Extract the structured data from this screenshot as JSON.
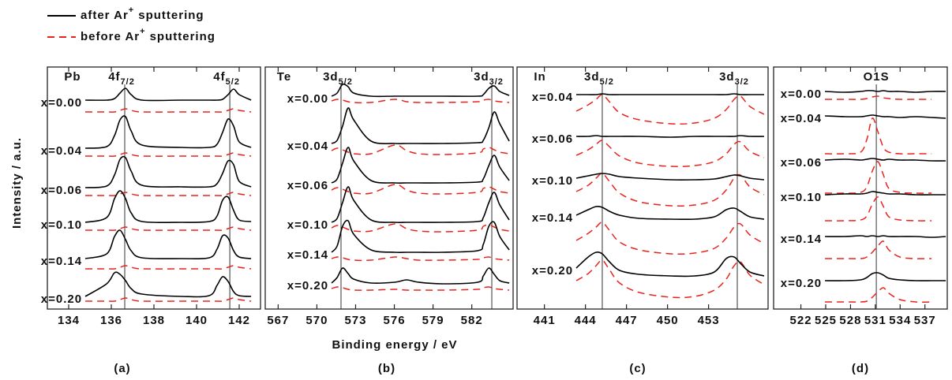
{
  "legend": {
    "after": {
      "text": "after Ar",
      "sup": "+",
      "tail": "sputtering",
      "color": "#000000",
      "line_style": "solid"
    },
    "before": {
      "text": "before Ar",
      "sup": "+",
      "tail": "sputtering",
      "color": "#e8231c",
      "line_style": "dashed"
    }
  },
  "x_label": "Binding energy / eV",
  "y_label": "Intensity / a.u.",
  "chart_data": [
    {
      "type": "line",
      "caption": "(a)",
      "element": "Pb",
      "peak_labels": [
        {
          "main": "4f",
          "sub": "7/2"
        },
        {
          "main": "4f",
          "sub": "5/2"
        }
      ],
      "ref_lines": [
        136.63,
        141.56
      ],
      "xlim": [
        133,
        143
      ],
      "xticks": [
        134,
        136,
        138,
        140,
        142
      ],
      "ylim": [
        0,
        300
      ],
      "x": [
        134.78,
        135.78,
        136.15,
        136.41,
        136.67,
        136.93,
        137.44,
        139.3,
        140.59,
        140.96,
        141.22,
        141.48,
        141.74,
        142.0,
        142.56
      ],
      "series": [
        {
          "name": "x=0.00",
          "after": [
            265,
            265,
            267,
            274,
            280,
            272,
            265,
            265,
            265,
            265,
            266,
            272,
            279,
            272,
            265
          ],
          "before": [
            250,
            250,
            250,
            252,
            254,
            252,
            250,
            250,
            250,
            250,
            250,
            252,
            254,
            252,
            250
          ]
        },
        {
          "name": "x=0.04",
          "after": [
            204,
            206,
            220,
            240,
            244,
            226,
            208,
            205,
            205,
            209,
            224,
            241,
            232,
            212,
            205
          ],
          "before": [
            194,
            194,
            194,
            196,
            198,
            196,
            194,
            194,
            194,
            194,
            194,
            196,
            198,
            196,
            194
          ]
        },
        {
          "name": "x=0.06",
          "after": [
            154,
            156,
            170,
            190,
            192,
            175,
            157,
            155,
            155,
            159,
            172,
            188,
            183,
            162,
            155
          ],
          "before": [
            144,
            144,
            144,
            146,
            148,
            146,
            144,
            144,
            144,
            144,
            144,
            146,
            148,
            146,
            144
          ]
        },
        {
          "name": "x=0.10",
          "after": [
            110,
            116,
            140,
            150,
            140,
            122,
            111,
            110,
            111,
            118,
            138,
            142,
            125,
            113,
            111
          ],
          "before": [
            100,
            100,
            100,
            102,
            104,
            102,
            100,
            100,
            100,
            100,
            100,
            102,
            104,
            102,
            100
          ]
        },
        {
          "name": "x=0.14",
          "after": [
            64,
            70,
            92,
            100,
            88,
            74,
            65,
            64,
            65,
            76,
            93,
            90,
            74,
            66,
            64
          ],
          "before": [
            51,
            51,
            51,
            53,
            55,
            53,
            51,
            51,
            51,
            51,
            51,
            53,
            55,
            53,
            51
          ]
        },
        {
          "name": "x=0.20",
          "after": [
            16,
            32,
            46,
            44,
            36,
            26,
            19,
            16,
            17,
            30,
            41,
            35,
            22,
            17,
            16
          ],
          "before": [
            10,
            10,
            10,
            12,
            14,
            12,
            10,
            10,
            10,
            10,
            10,
            12,
            14,
            12,
            10
          ]
        }
      ]
    },
    {
      "type": "line",
      "caption": "(b)",
      "element": "Te",
      "peak_labels": [
        {
          "main": "3d",
          "sub": "5/2"
        },
        {
          "main": "3d",
          "sub": "3/2"
        }
      ],
      "ref_lines": [
        571.87,
        583.55
      ],
      "xlim": [
        566,
        585.2
      ],
      "xticks": [
        567,
        570,
        573,
        576,
        579,
        582
      ],
      "ylim": [
        0,
        300
      ],
      "x": [
        571.14,
        571.57,
        571.99,
        572.42,
        572.85,
        574.2,
        576.03,
        576.95,
        577.87,
        579.71,
        582.46,
        582.89,
        583.32,
        583.74,
        584.17,
        584.9
      ],
      "series": [
        {
          "name": "x=0.00",
          "after": [
            270,
            274,
            285,
            282,
            274,
            270,
            270,
            270,
            270,
            270,
            270,
            272,
            280,
            283,
            276,
            271
          ],
          "before": [
            264,
            266,
            265,
            263,
            262,
            262,
            266,
            263,
            262,
            262,
            263,
            265,
            266,
            264,
            263,
            262
          ]
        },
        {
          "name": "x=0.04",
          "after": [
            210,
            214,
            232,
            255,
            240,
            213,
            210,
            210,
            210,
            210,
            211,
            214,
            230,
            250,
            235,
            213
          ],
          "before": [
            201,
            204,
            202,
            199,
            197,
            197,
            208,
            201,
            197,
            196,
            198,
            203,
            205,
            202,
            199,
            197
          ]
        },
        {
          "name": "x=0.06",
          "after": [
            160,
            165,
            185,
            205,
            188,
            163,
            160,
            160,
            160,
            160,
            161,
            165,
            182,
            195,
            180,
            163
          ],
          "before": [
            151,
            154,
            152,
            149,
            147,
            147,
            158,
            151,
            147,
            146,
            148,
            153,
            155,
            152,
            149,
            147
          ]
        },
        {
          "name": "x=0.10",
          "after": [
            110,
            115,
            135,
            155,
            138,
            113,
            110,
            110,
            110,
            110,
            111,
            116,
            135,
            148,
            132,
            113
          ],
          "before": [
            103,
            106,
            104,
            101,
            99,
            99,
            108,
            102,
            99,
            98,
            100,
            105,
            107,
            104,
            101,
            99
          ]
        },
        {
          "name": "x=0.14",
          "after": [
            72,
            80,
            105,
            112,
            95,
            75,
            72,
            72,
            72,
            72,
            74,
            82,
            105,
            110,
            92,
            75
          ],
          "before": [
            64,
            66,
            65,
            63,
            62,
            62,
            66,
            64,
            62,
            62,
            63,
            65,
            66,
            64,
            63,
            62
          ]
        },
        {
          "name": "x=0.20",
          "after": [
            33,
            40,
            52,
            45,
            38,
            33,
            34,
            37,
            34,
            32,
            34,
            42,
            52,
            44,
            36,
            33
          ],
          "before": [
            26,
            28,
            27,
            25,
            24,
            24,
            25,
            24,
            24,
            24,
            25,
            27,
            28,
            26,
            25,
            24
          ]
        }
      ]
    },
    {
      "type": "line",
      "caption": "(c)",
      "element": "In",
      "peak_labels": [
        {
          "main": "3d",
          "sub": "5/2"
        },
        {
          "main": "3d",
          "sub": "3/2"
        }
      ],
      "ref_lines": [
        445.23,
        455.1
      ],
      "xlim": [
        439,
        457.35
      ],
      "xticks": [
        441,
        444,
        447,
        450,
        453
      ],
      "ylim": [
        0,
        300
      ],
      "x": [
        443.33,
        444.2,
        444.78,
        445.23,
        445.75,
        446.5,
        447.94,
        450.25,
        451.98,
        453.42,
        454.29,
        454.87,
        455.33,
        456.02,
        457.06
      ],
      "series": [
        {
          "name": "x=0.04",
          "after": [
            272,
            272,
            272,
            273,
            272,
            272,
            272,
            272,
            272,
            272,
            272,
            273,
            272,
            272,
            272
          ],
          "before": [
            251,
            259,
            266,
            272,
            263,
            249,
            240,
            235,
            236,
            242,
            253,
            266,
            270,
            257,
            247
          ]
        },
        {
          "name": "x=0.06",
          "after": [
            219,
            219,
            220,
            219,
            219,
            219,
            219,
            218,
            219,
            219,
            219,
            219,
            220,
            219,
            219
          ],
          "before": [
            195,
            202,
            209,
            214,
            206,
            194,
            185,
            181,
            182,
            187,
            197,
            209,
            212,
            200,
            192
          ]
        },
        {
          "name": "x=0.10",
          "after": [
            166,
            169,
            171,
            172,
            171,
            168,
            166,
            164,
            164,
            165,
            168,
            170,
            169,
            166,
            164
          ],
          "before": [
            149,
            157,
            166,
            172,
            162,
            147,
            136,
            131,
            132,
            138,
            151,
            166,
            170,
            155,
            145
          ]
        },
        {
          "name": "x=0.14",
          "after": [
            119,
            126,
            130,
            129,
            124,
            119,
            115,
            114,
            114,
            117,
            126,
            128,
            124,
            117,
            114
          ],
          "before": [
            87,
            96,
            104,
            110,
            100,
            85,
            75,
            70,
            71,
            77,
            90,
            104,
            108,
            94,
            83
          ]
        },
        {
          "name": "x=0.20",
          "after": [
            52,
            66,
            72,
            70,
            60,
            49,
            44,
            42,
            42,
            47,
            64,
            66,
            58,
            47,
            42
          ],
          "before": [
            36,
            45,
            55,
            62,
            50,
            33,
            21,
            15,
            16,
            24,
            38,
            55,
            60,
            43,
            31
          ]
        }
      ]
    },
    {
      "type": "line",
      "caption": "(d)",
      "element": "O1S",
      "peak_labels": [],
      "ref_lines": [
        531.12
      ],
      "xlim": [
        518.7,
        539.7
      ],
      "xticks": [
        522,
        525,
        528,
        531,
        534,
        537
      ],
      "ylim": [
        0,
        300
      ],
      "x": [
        524.91,
        527.3,
        529.21,
        529.97,
        530.64,
        531.31,
        531.98,
        532.64,
        533.98,
        535.89,
        537.8,
        539.52
      ],
      "series": [
        {
          "name": "x=0.00",
          "after": [
            276,
            275,
            276,
            277,
            277,
            276,
            277,
            276,
            276,
            275,
            276,
            276
          ],
          "before": [
            266,
            266,
            266,
            267,
            269,
            270,
            268,
            267,
            266,
            266,
            266,
            null
          ]
        },
        {
          "name": "x=0.04",
          "after": [
            245,
            244,
            244,
            245,
            246,
            245,
            244,
            244,
            243,
            244,
            243,
            242
          ],
          "before": [
            197,
            197,
            199,
            215,
            242,
            225,
            205,
            199,
            197,
            197,
            197,
            null
          ]
        },
        {
          "name": "x=0.06",
          "after": [
            189,
            190,
            189,
            190,
            191,
            190,
            189,
            190,
            189,
            189,
            188,
            188
          ],
          "before": [
            147,
            147,
            148,
            155,
            175,
            187,
            170,
            153,
            148,
            147,
            147,
            null
          ]
        },
        {
          "name": "x=0.10",
          "after": [
            145,
            146,
            146,
            147,
            149,
            148,
            147,
            146,
            146,
            145,
            145,
            145
          ],
          "before": [
            112,
            112,
            113,
            118,
            133,
            142,
            130,
            117,
            113,
            112,
            112,
            null
          ]
        },
        {
          "name": "x=0.14",
          "after": [
            92,
            92,
            93,
            92,
            93,
            92,
            93,
            92,
            92,
            92,
            91,
            92
          ],
          "before": [
            64,
            64,
            64,
            66,
            72,
            80,
            86,
            75,
            66,
            64,
            64,
            null
          ]
        },
        {
          "name": "x=0.20",
          "after": [
            36,
            36,
            37,
            40,
            45,
            46,
            43,
            39,
            37,
            36,
            36,
            36
          ],
          "before": [
            9,
            9,
            9,
            10,
            15,
            22,
            27,
            20,
            12,
            9,
            9,
            null
          ]
        }
      ]
    }
  ]
}
